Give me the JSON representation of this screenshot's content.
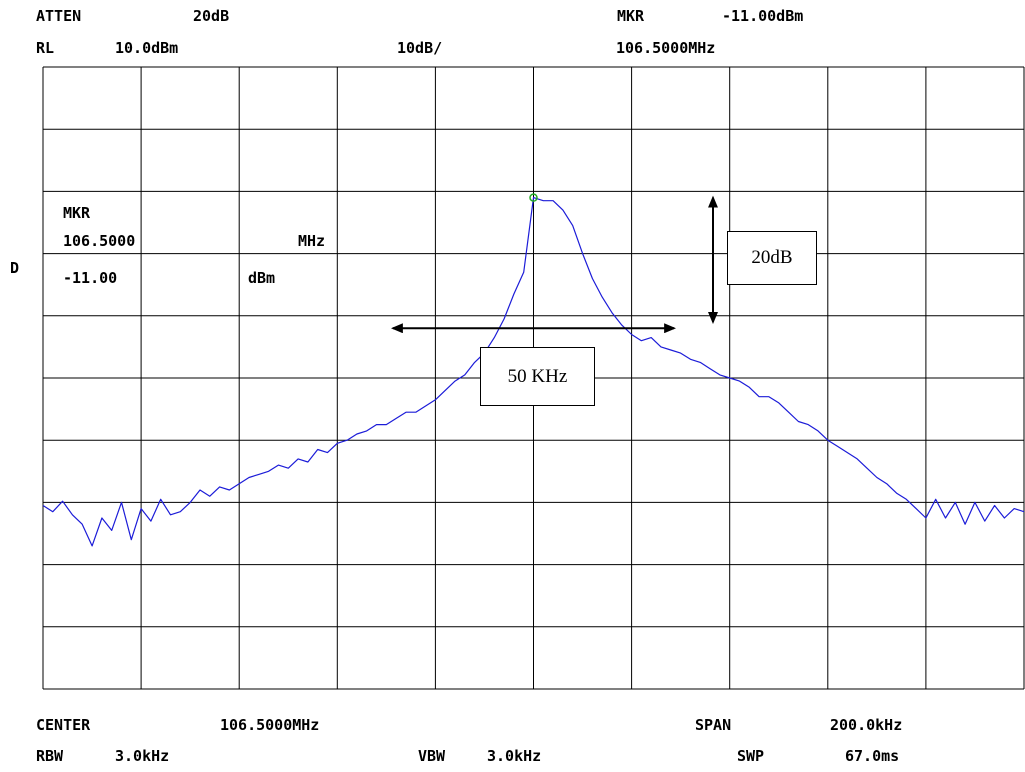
{
  "header": {
    "atten_label": "ATTEN",
    "atten_value": "20dB",
    "rl_label": "RL",
    "rl_value": "10.0dBm",
    "scale": "10dB/",
    "mkr_label": "MKR",
    "mkr_level": "-11.00dBm",
    "mkr_freq": "106.5000MHz"
  },
  "side": {
    "detector": "D"
  },
  "marker_readout": {
    "label": "MKR",
    "freq": "106.5000",
    "freq_unit": "MHz",
    "level": "-11.00",
    "level_unit": "dBm"
  },
  "footer": {
    "center_label": "CENTER",
    "center_value": "106.5000MHz",
    "span_label": "SPAN",
    "span_value": "200.0kHz",
    "rbw_label": "RBW",
    "rbw_value": "3.0kHz",
    "vbw_label": "VBW",
    "vbw_value": "3.0kHz",
    "swp_label": "SWP",
    "swp_value": "67.0ms"
  },
  "annotations": {
    "vertical_note": "20dB",
    "horizontal_note": "50 KHz",
    "vertical_from_db": -11,
    "vertical_to_db": -31,
    "horizontal_from_khz": 106475,
    "horizontal_to_khz": 106525,
    "horizontal_at_db": -32
  },
  "chart_data": {
    "type": "line",
    "x_unit": "kHz",
    "y_unit": "dBm",
    "xlim": [
      106400,
      106600
    ],
    "ylim": [
      -90,
      10
    ],
    "x_divisions": 10,
    "y_divisions": 10,
    "grid": true,
    "trace_color": "#1c1cd8",
    "marker_color": "#22aa22",
    "marker": {
      "x": 106500,
      "y": -11
    },
    "series": [
      {
        "x": [
          106400,
          106402,
          106404,
          106406,
          106408,
          106410,
          106412,
          106414,
          106416,
          106418,
          106420,
          106422,
          106424,
          106426,
          106428,
          106430,
          106432,
          106434,
          106436,
          106438,
          106440,
          106442,
          106444,
          106446,
          106448,
          106450,
          106452,
          106454,
          106456,
          106458,
          106460,
          106462,
          106464,
          106466,
          106468,
          106470,
          106472,
          106474,
          106476,
          106478,
          106480,
          106482,
          106484,
          106486,
          106488,
          106490,
          106492,
          106494,
          106496,
          106498,
          106500,
          106502,
          106504,
          106506,
          106508,
          106510,
          106512,
          106514,
          106516,
          106518,
          106520,
          106522,
          106524,
          106526,
          106528,
          106530,
          106532,
          106534,
          106536,
          106538,
          106540,
          106542,
          106544,
          106546,
          106548,
          106550,
          106552,
          106554,
          106556,
          106558,
          106560,
          106562,
          106564,
          106566,
          106568,
          106570,
          106572,
          106574,
          106576,
          106578,
          106580,
          106582,
          106584,
          106586,
          106588,
          106590,
          106592,
          106594,
          106596,
          106598,
          106600
        ],
        "values": [
          -60.5,
          -61.5,
          -59.8,
          -62.0,
          -63.5,
          -67.0,
          -62.5,
          -64.5,
          -60.0,
          -66.0,
          -61.0,
          -63.0,
          -59.5,
          -62.0,
          -61.5,
          -60.0,
          -58.0,
          -59.0,
          -57.5,
          -58.0,
          -57.0,
          -56.0,
          -55.5,
          -55.0,
          -54.0,
          -54.5,
          -53.0,
          -53.5,
          -51.5,
          -52.0,
          -50.5,
          -50.0,
          -49.0,
          -48.5,
          -47.5,
          -47.5,
          -46.5,
          -45.5,
          -45.5,
          -44.5,
          -43.5,
          -42.0,
          -40.5,
          -39.5,
          -37.5,
          -36.0,
          -33.5,
          -30.5,
          -26.5,
          -23.0,
          -11.0,
          -11.5,
          -11.5,
          -13.0,
          -15.5,
          -20.0,
          -24.0,
          -27.0,
          -29.5,
          -31.5,
          -33.0,
          -34.0,
          -33.5,
          -35.0,
          -35.5,
          -36.0,
          -37.0,
          -37.5,
          -38.5,
          -39.5,
          -40.0,
          -40.5,
          -41.5,
          -43.0,
          -43.0,
          -44.0,
          -45.5,
          -47.0,
          -47.5,
          -48.5,
          -50.0,
          -51.0,
          -52.0,
          -53.0,
          -54.5,
          -56.0,
          -57.0,
          -58.5,
          -59.5,
          -61.0,
          -62.5,
          -59.5,
          -62.5,
          -60.0,
          -63.5,
          -60.0,
          -63.0,
          -60.5,
          -62.5,
          -61.0,
          -61.5
        ]
      }
    ]
  }
}
